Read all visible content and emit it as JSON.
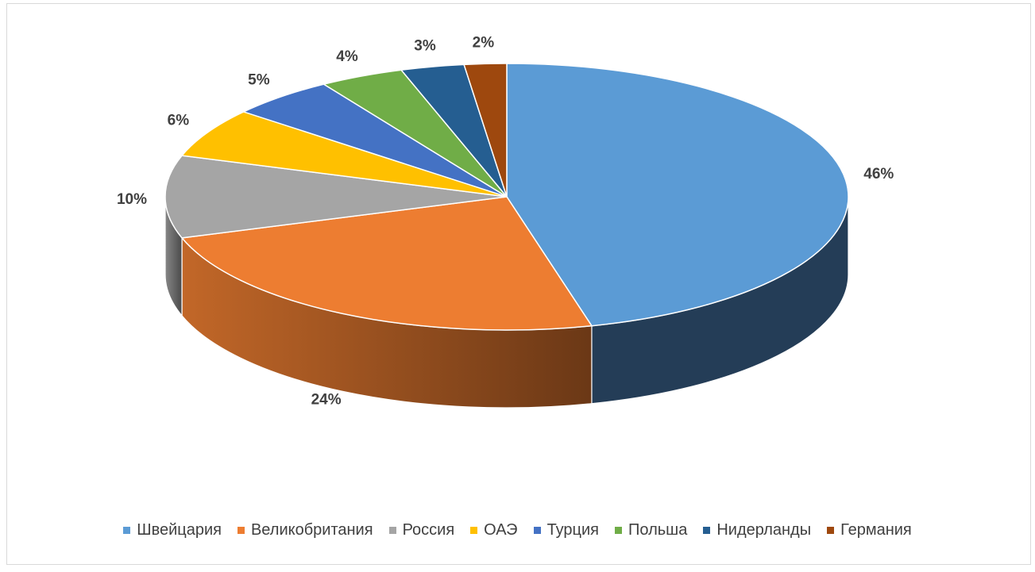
{
  "chart_data": {
    "type": "pie",
    "style": "3d",
    "title": "",
    "categories": [
      "Швейцария",
      "Великобритания",
      "Россия",
      "ОАЭ",
      "Турция",
      "Польша",
      "Нидерланды",
      "Германия"
    ],
    "values": [
      46,
      24,
      10,
      6,
      5,
      4,
      3,
      2
    ],
    "labels": [
      "46%",
      "24%",
      "10%",
      "6%",
      "5%",
      "4%",
      "3%",
      "2%"
    ],
    "colors": [
      "#5b9bd5",
      "#ed7d31",
      "#a5a5a5",
      "#ffc000",
      "#4472c4",
      "#70ad47",
      "#255e91",
      "#9e480e"
    ],
    "legend_position": "bottom"
  }
}
